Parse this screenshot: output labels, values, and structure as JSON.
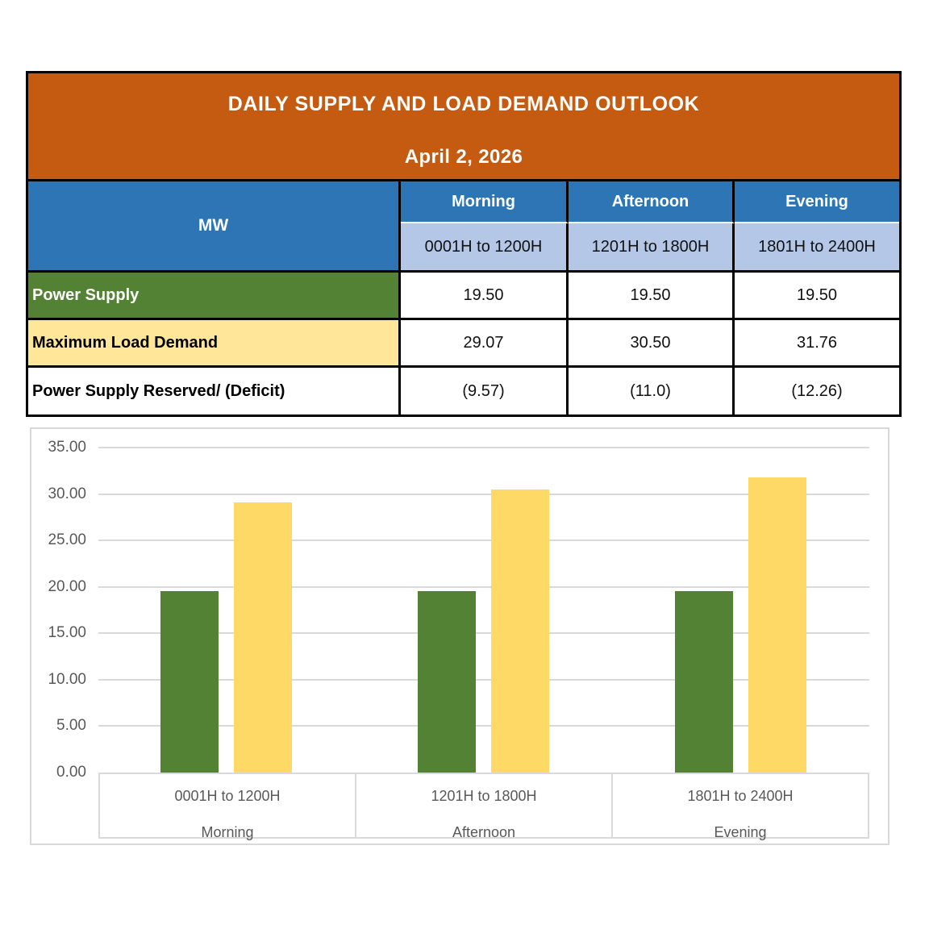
{
  "report": {
    "title": "DAILY SUPPLY AND LOAD DEMAND OUTLOOK",
    "date": "April 2, 2026"
  },
  "table": {
    "unit_label": "MW",
    "periods": [
      {
        "name": "Morning",
        "hours": "0001H to 1200H"
      },
      {
        "name": "Afternoon",
        "hours": "1201H to 1800H"
      },
      {
        "name": "Evening",
        "hours": "1801H to 2400H"
      }
    ],
    "rows": [
      {
        "label": "Power Supply",
        "values": [
          "19.50",
          "19.50",
          "19.50"
        ]
      },
      {
        "label": "Maximum Load Demand",
        "values": [
          "29.07",
          "30.50",
          "31.76"
        ]
      },
      {
        "label": "Power Supply Reserved/ (Deficit)",
        "values": [
          "(9.57)",
          "(11.0)",
          "(12.26)"
        ]
      }
    ]
  },
  "chart_data": {
    "type": "bar",
    "categories": [
      {
        "hours": "0001H to 1200H",
        "label": "Morning"
      },
      {
        "hours": "1201H to 1800H",
        "label": "Afternoon"
      },
      {
        "hours": "1801H to 2400H",
        "label": "Evening"
      }
    ],
    "series": [
      {
        "name": "Power Supply",
        "color": "#548235",
        "values": [
          19.5,
          19.5,
          19.5
        ]
      },
      {
        "name": "Maximum Load Demand",
        "color": "#FFD966",
        "values": [
          29.07,
          30.5,
          31.76
        ]
      }
    ],
    "title": "",
    "xlabel": "",
    "ylabel": "",
    "ylim": [
      0,
      35
    ],
    "ytick_step": 5,
    "ytick_format_decimals": 2,
    "grid": true,
    "legend_position": "none"
  },
  "colors": {
    "header_orange": "#C55A11",
    "header_blue": "#2E75B6",
    "subheader_light_blue": "#B4C7E7",
    "supply_green": "#548235",
    "demand_yellow_row": "#FFE699",
    "demand_yellow_bar": "#FFD966",
    "grid_gray": "#D9D9D9",
    "axis_text_gray": "#595959"
  }
}
